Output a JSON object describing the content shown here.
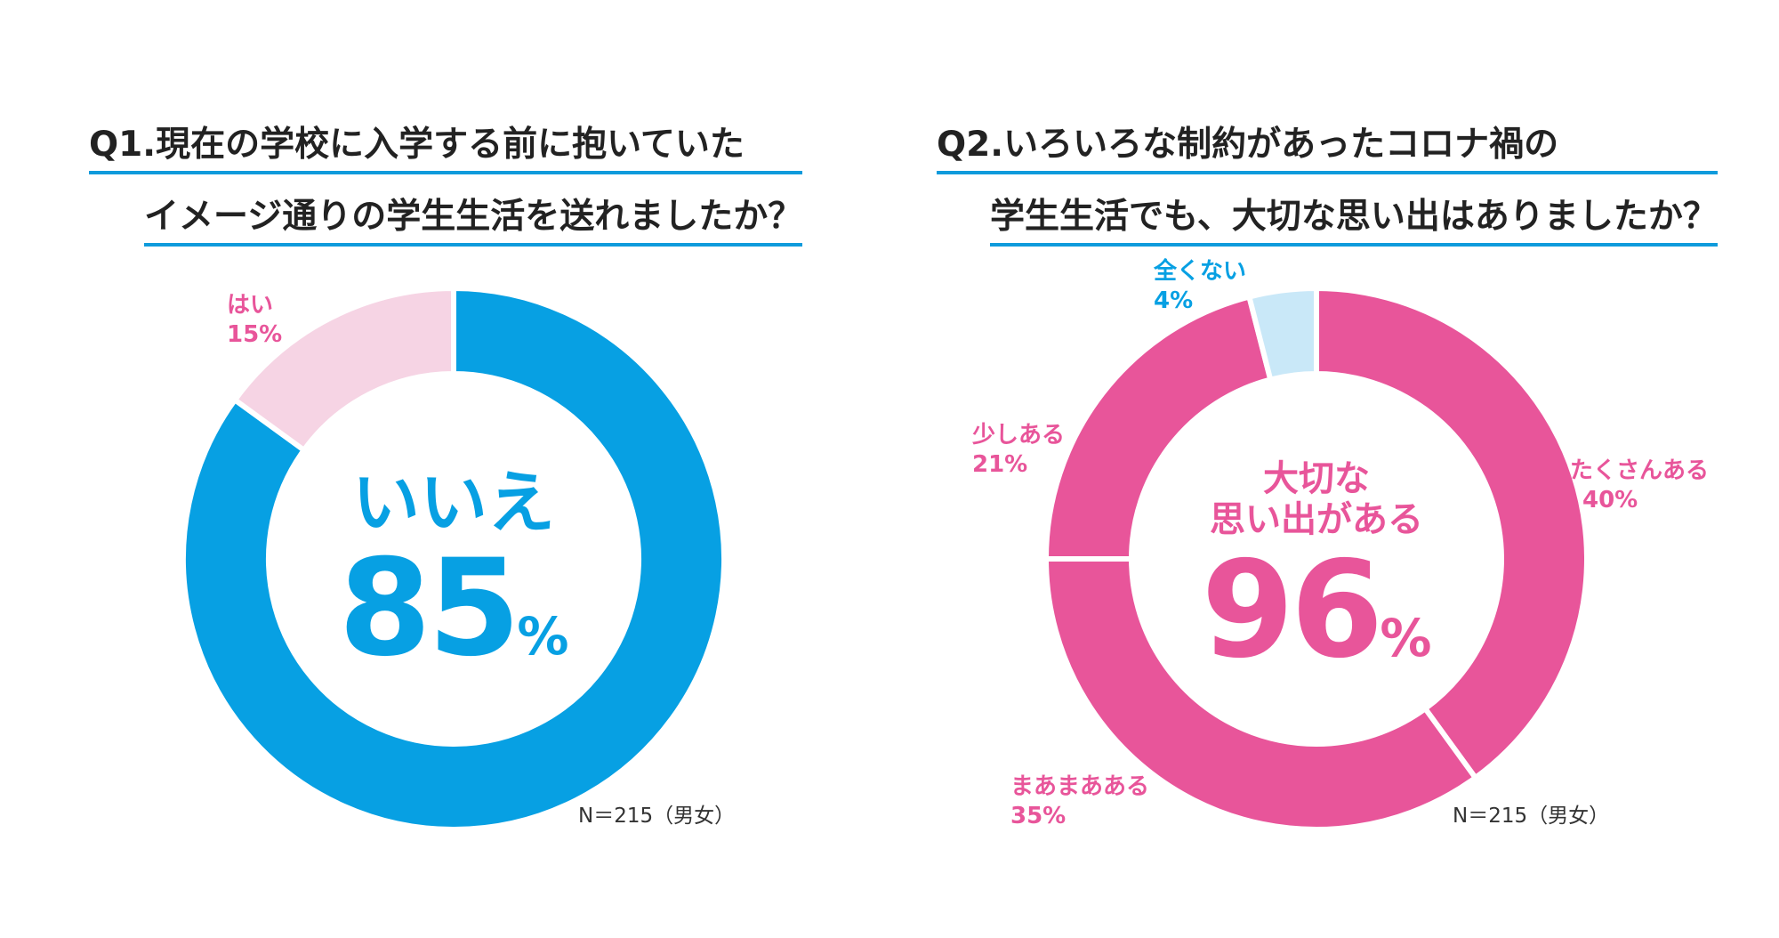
{
  "colors": {
    "blue": "#07a0e3",
    "light_pink": "#f6d4e4",
    "pink": "#e8559a",
    "light_blue": "#c9e8f8",
    "underline": "#0f9bdc"
  },
  "q1": {
    "title_line1": "Q1.現在の学校に入学する前に抱いていた",
    "title_line2": "イメージ通りの学生生活を送れましたか？",
    "center_label": "いいえ",
    "center_value": "85",
    "center_unit": "%",
    "n_note": "N＝215（男女）",
    "labels": {
      "yes": "はい",
      "yes_pct": "15%"
    }
  },
  "q2": {
    "title_line1": "Q2.いろいろな制約があったコロナ禍の",
    "title_line2": "学生生活でも、大切な思い出はありましたか？",
    "center_line1": "大切な",
    "center_line2": "思い出がある",
    "center_value": "96",
    "center_unit": "%",
    "n_note": "N＝215（男女）",
    "labels": {
      "a": "たくさんある",
      "a_pct": "40%",
      "b": "まあまあある",
      "b_pct": "35%",
      "c": "少しある",
      "c_pct": "21%",
      "d": "全くない",
      "d_pct": "4%"
    }
  },
  "chart_data": [
    {
      "type": "pie",
      "title": "Q1.現在の学校に入学する前に抱いていたイメージ通りの学生生活を送れましたか？",
      "categories": [
        "いいえ",
        "はい"
      ],
      "values": [
        85,
        15
      ],
      "colors": [
        "#07a0e3",
        "#f6d4e4"
      ]
    },
    {
      "type": "pie",
      "title": "Q2.いろいろな制約があったコロナ禍の学生生活でも、大切な思い出はありましたか？",
      "categories": [
        "たくさんある",
        "まあまあある",
        "少しある",
        "全くない"
      ],
      "values": [
        40,
        35,
        21,
        4
      ],
      "colors": [
        "#e8559a",
        "#e8559a",
        "#e8559a",
        "#c9e8f8"
      ]
    }
  ]
}
